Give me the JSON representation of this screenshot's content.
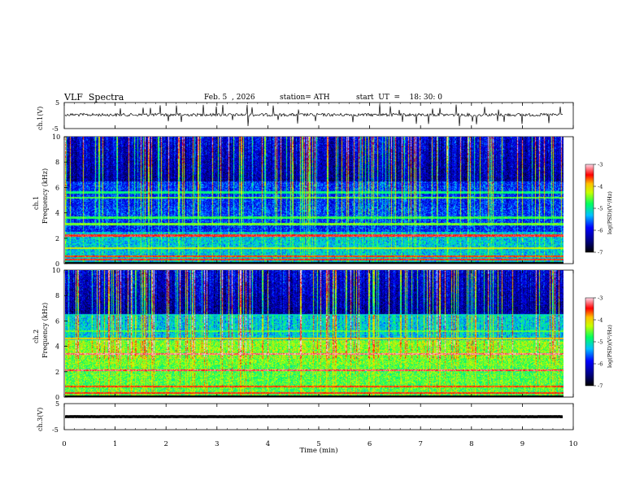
{
  "header": {
    "title": "VLF  Spectra",
    "date": "Feb. 5  , 2026",
    "station": "station= ATH",
    "start_ut": "start  UT  =    18: 30: 0"
  },
  "chart_data": [
    {
      "type": "line",
      "panel": "ch1-waveform",
      "ylabel": "ch.1(V)",
      "ylim": [
        -5,
        5
      ],
      "yticks": [
        "5",
        "-5"
      ],
      "xlim": [
        0,
        10
      ],
      "series": [
        {
          "baseline": 0.3,
          "noise": 0.6,
          "spikes": 40,
          "color": "#000000"
        }
      ]
    },
    {
      "type": "heatmap",
      "panel": "ch1-spectrogram",
      "ylabel_lines": [
        "ch.1",
        "Frequency  (kHz)"
      ],
      "ylim": [
        0,
        10
      ],
      "yticks": [
        "0",
        "2",
        "4",
        "6",
        "8",
        "10"
      ],
      "xlim": [
        0,
        9.8
      ],
      "colorbar": {
        "label": "log(PSD)(V²/Hz)",
        "range": [
          -7,
          -3
        ],
        "ticks": [
          "-3",
          "-4",
          "-5",
          "-6",
          "-7"
        ]
      },
      "bands_khz": [
        [
          0.3,
          -3.5
        ],
        [
          0.55,
          -3.6
        ],
        [
          1.2,
          -4.2
        ],
        [
          2.2,
          -3.4
        ],
        [
          3.1,
          -4.5
        ],
        [
          3.6,
          -4.7
        ],
        [
          5.2,
          -4.6
        ],
        [
          5.6,
          -4.9
        ]
      ]
    },
    {
      "type": "heatmap",
      "panel": "ch2-spectrogram",
      "ylabel_lines": [
        "ch.2",
        "Frequency  (kHz)"
      ],
      "ylim": [
        0,
        10
      ],
      "yticks": [
        "0",
        "2",
        "4",
        "6",
        "8",
        "10"
      ],
      "xlim": [
        0,
        9.8
      ],
      "colorbar": {
        "label": "log(PSD)(V²/Hz)",
        "range": [
          -7,
          -3
        ],
        "ticks": [
          "-3",
          "-4",
          "-5",
          "-6",
          "-7"
        ]
      },
      "bands_khz": [
        [
          0.3,
          -3.5
        ],
        [
          0.8,
          -3.6
        ],
        [
          2.1,
          -3.3
        ],
        [
          3.4,
          -3.2
        ],
        [
          4.6,
          -4.0
        ],
        [
          5.2,
          -4.6
        ],
        [
          6.5,
          -5.2
        ]
      ]
    },
    {
      "type": "line",
      "panel": "ch3-waveform",
      "ylabel": "ch.3(V)",
      "ylim": [
        -5,
        5
      ],
      "yticks": [
        "5",
        "-5"
      ],
      "xlim": [
        0,
        10
      ],
      "series": [
        {
          "baseline": 0.0,
          "noise": 0.05,
          "spikes": 0,
          "color": "#000000"
        }
      ]
    }
  ],
  "xaxis": {
    "label": "Time  (min)",
    "ticks": [
      "0",
      "1",
      "2",
      "3",
      "4",
      "5",
      "6",
      "7",
      "8",
      "9",
      "10"
    ]
  }
}
